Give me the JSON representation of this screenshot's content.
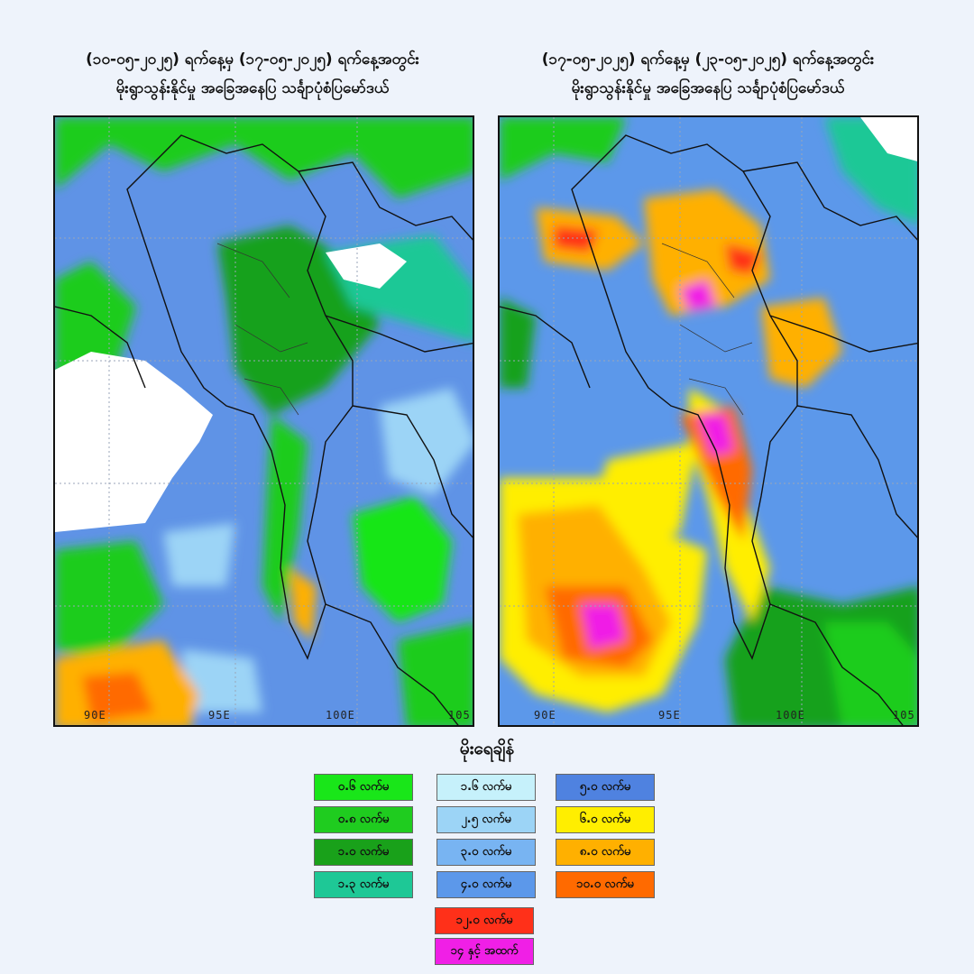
{
  "titles": {
    "left": {
      "line1": "(၁၀-၀၅-၂၀၂၅) ရက်နေ့မှ (၁၇-၀၅-၂၀၂၅) ရက်နေ့အတွင်း",
      "line2": "မိုးရွာသွန်းနိုင်မှု အခြေအနေပြ သင်္ချာပုံစံပြမော်ဒယ်"
    },
    "right": {
      "line1": "(၁၇-၀၅-၂၀၂၅) ရက်နေ့မှ (၂၃-၀၅-၂၀၂၅) ရက်နေ့အတွင်း",
      "line2": "မိုးရွာသွန်းနိုင်မှု အခြေအနေပြ သင်္ချာပုံစံပြမော်ဒယ်"
    }
  },
  "map_ticks": [
    "90E",
    "95E",
    "100E",
    "105"
  ],
  "legend": {
    "title": "မိုးရေချိန်",
    "items": [
      {
        "label": "၀.၆ လက်မ",
        "color": "#19e619"
      },
      {
        "label": "၀.၈ လက်မ",
        "color": "#1fcc1f"
      },
      {
        "label": "၁.၀ လက်မ",
        "color": "#19a11a"
      },
      {
        "label": "၁.၃ လက်မ",
        "color": "#1ec896"
      },
      {
        "label": "၁.၆ လက်မ",
        "color": "#c6f1fb"
      },
      {
        "label": "၂.၅ လက်မ",
        "color": "#9cd4f6"
      },
      {
        "label": "၃.၀ လက်မ",
        "color": "#78b4f2"
      },
      {
        "label": "၄.၀ လက်မ",
        "color": "#5c98ea"
      },
      {
        "label": "၅.၀ လက်မ",
        "color": "#4f82e0"
      },
      {
        "label": "၆.၀ လက်မ",
        "color": "#ffee00"
      },
      {
        "label": "၈.၀ လက်မ",
        "color": "#ffb000"
      },
      {
        "label": "၁၀.၀ လက်မ",
        "color": "#ff6a00"
      },
      {
        "label": "၁၂.၀ လက်မ",
        "color": "#ff3019"
      },
      {
        "label": "၁၄ နှင့် အထက်",
        "color": "#f01fe6"
      }
    ]
  }
}
